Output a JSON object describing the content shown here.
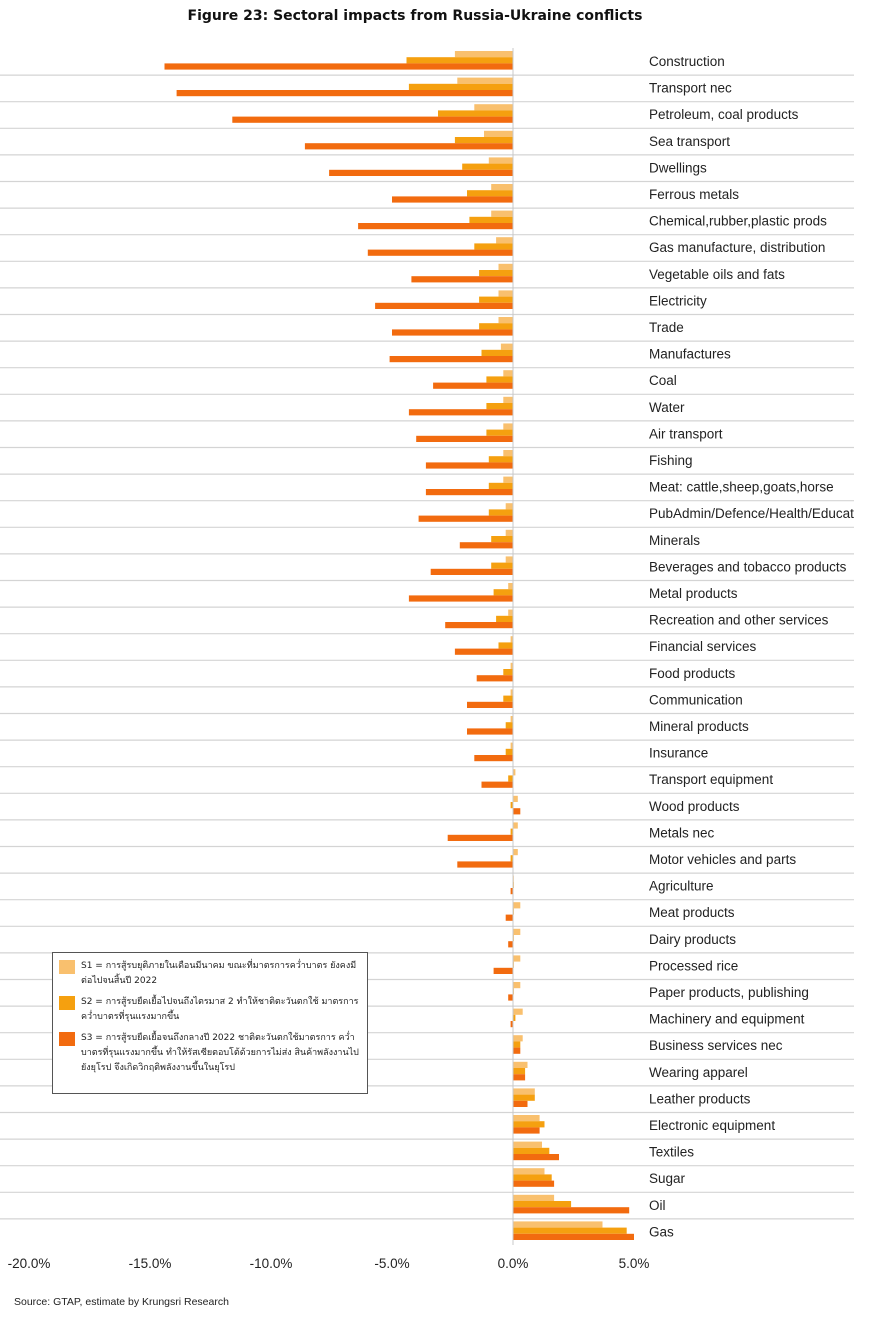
{
  "chart_data": {
    "type": "bar",
    "orientation": "horizontal",
    "title": "Figure 23: Sectoral impacts from Russia-Ukraine conflicts",
    "xlim": [
      -20,
      5
    ],
    "x_ticks": [
      "-20.0%",
      "-15.0%",
      "-10.0%",
      "-5.0%",
      "0.0%",
      "5.0%"
    ],
    "x_tick_values": [
      -20,
      -15,
      -10,
      -5,
      0,
      5
    ],
    "grid": false,
    "legend_position": "lower-left",
    "categories": [
      "Construction",
      "Transport nec",
      "Petroleum, coal products",
      "Sea transport",
      "Dwellings",
      "Ferrous metals",
      "Chemical,rubber,plastic prods",
      "Gas manufacture, distribution",
      "Vegetable oils and fats",
      "Electricity",
      "Trade",
      "Manufactures",
      "Coal",
      "Water",
      "Air transport",
      "Fishing",
      "Meat: cattle,sheep,goats,horse",
      "PubAdmin/Defence/Health/Educat",
      "Minerals",
      "Beverages and tobacco products",
      "Metal products",
      "Recreation and other services",
      "Financial services",
      "Food products",
      "Communication",
      "Mineral products",
      "Insurance",
      "Transport equipment",
      "Wood products",
      "Metals nec",
      "Motor vehicles and parts",
      "Agriculture",
      "Meat products",
      "Dairy products",
      "Processed rice",
      "Paper products, publishing",
      "Machinery and equipment",
      "Business services nec",
      "Wearing apparel",
      "Leather products",
      "Electronic equipment",
      "Textiles",
      "Sugar",
      "Oil",
      "Gas"
    ],
    "series": [
      {
        "name": "S1 = การสู้รบยุติภายในเดือนมีนาคม ขณะที่มาตรการคว่ำบาตร ยังคงมีต่อไปจนสิ้นปี 2022",
        "color": "#F9C06E",
        "values": [
          -2.4,
          -2.3,
          -1.6,
          -1.2,
          -1.0,
          -0.9,
          -0.9,
          -0.7,
          -0.6,
          -0.6,
          -0.6,
          -0.5,
          -0.4,
          -0.4,
          -0.4,
          -0.4,
          -0.4,
          -0.3,
          -0.3,
          -0.3,
          -0.2,
          -0.2,
          -0.1,
          -0.1,
          -0.1,
          -0.1,
          -0.1,
          0.1,
          0.2,
          0.2,
          0.2,
          0.0,
          0.3,
          0.3,
          0.3,
          0.3,
          0.4,
          0.4,
          0.6,
          0.9,
          1.1,
          1.2,
          1.3,
          1.7,
          3.7
        ]
      },
      {
        "name": "S2 = การสู้รบยืดเยื้อไปจนถึงไตรมาส 2 ทำให้ชาติตะวันตกใช้ มาตรการคว่ำบาตรที่รุนแรงมากขึ้น",
        "color": "#F5A00F",
        "values": [
          -4.4,
          -4.3,
          -3.1,
          -2.4,
          -2.1,
          -1.9,
          -1.8,
          -1.6,
          -1.4,
          -1.4,
          -1.4,
          -1.3,
          -1.1,
          -1.1,
          -1.1,
          -1.0,
          -1.0,
          -1.0,
          -0.9,
          -0.9,
          -0.8,
          -0.7,
          -0.6,
          -0.4,
          -0.4,
          -0.3,
          -0.3,
          -0.2,
          -0.1,
          -0.1,
          -0.1,
          0.0,
          0.0,
          0.0,
          0.0,
          0.0,
          0.1,
          0.3,
          0.5,
          0.9,
          1.3,
          1.5,
          1.6,
          2.4,
          4.7
        ]
      },
      {
        "name": "S3 = การสู้รบยืดเยื้อจนถึงกลางปี 2022 ชาติตะวันตกใช้มาตรการ คว่ำบาตรที่รุนแรงมากขึ้น ทำให้รัสเซียตอบโต้ด้วยการไม่ส่ง สินค้าพลังงานไปยังยุโรป จึงเกิดวิกฤติพลังงานขึ้นในยุโรป",
        "color": "#F26B0F",
        "values": [
          -14.4,
          -13.9,
          -11.6,
          -8.6,
          -7.6,
          -5.0,
          -6.4,
          -6.0,
          -4.2,
          -5.7,
          -5.0,
          -5.1,
          -3.3,
          -4.3,
          -4.0,
          -3.6,
          -3.6,
          -3.9,
          -2.2,
          -3.4,
          -4.3,
          -2.8,
          -2.4,
          -1.5,
          -1.9,
          -1.9,
          -1.6,
          -1.3,
          0.3,
          -2.7,
          -2.3,
          -0.1,
          -0.3,
          -0.2,
          -0.8,
          -0.2,
          -0.1,
          0.3,
          0.5,
          0.6,
          1.1,
          1.9,
          1.7,
          4.8,
          5.0
        ]
      }
    ]
  },
  "legend": {
    "s1_label": "S1 = การสู้รบยุติภายในเดือนมีนาคม ขณะที่มาตรการคว่ำบาตร ยังคงมีต่อไปจนสิ้นปี 2022",
    "s2_label": "S2 = การสู้รบยืดเยื้อไปจนถึงไตรมาส 2 ทำให้ชาติตะวันตกใช้ มาตรการคว่ำบาตรที่รุนแรงมากขึ้น",
    "s3_label": "S3 = การสู้รบยืดเยื้อจนถึงกลางปี 2022 ชาติตะวันตกใช้มาตรการ คว่ำบาตรที่รุนแรงมากขึ้น ทำให้รัสเซียตอบโต้ด้วยการไม่ส่ง สินค้าพลังงานไปยังยุโรป จึงเกิดวิกฤติพลังงานขึ้นในยุโรป"
  },
  "source": "Source: GTAP, estimate by Krungsri Research"
}
